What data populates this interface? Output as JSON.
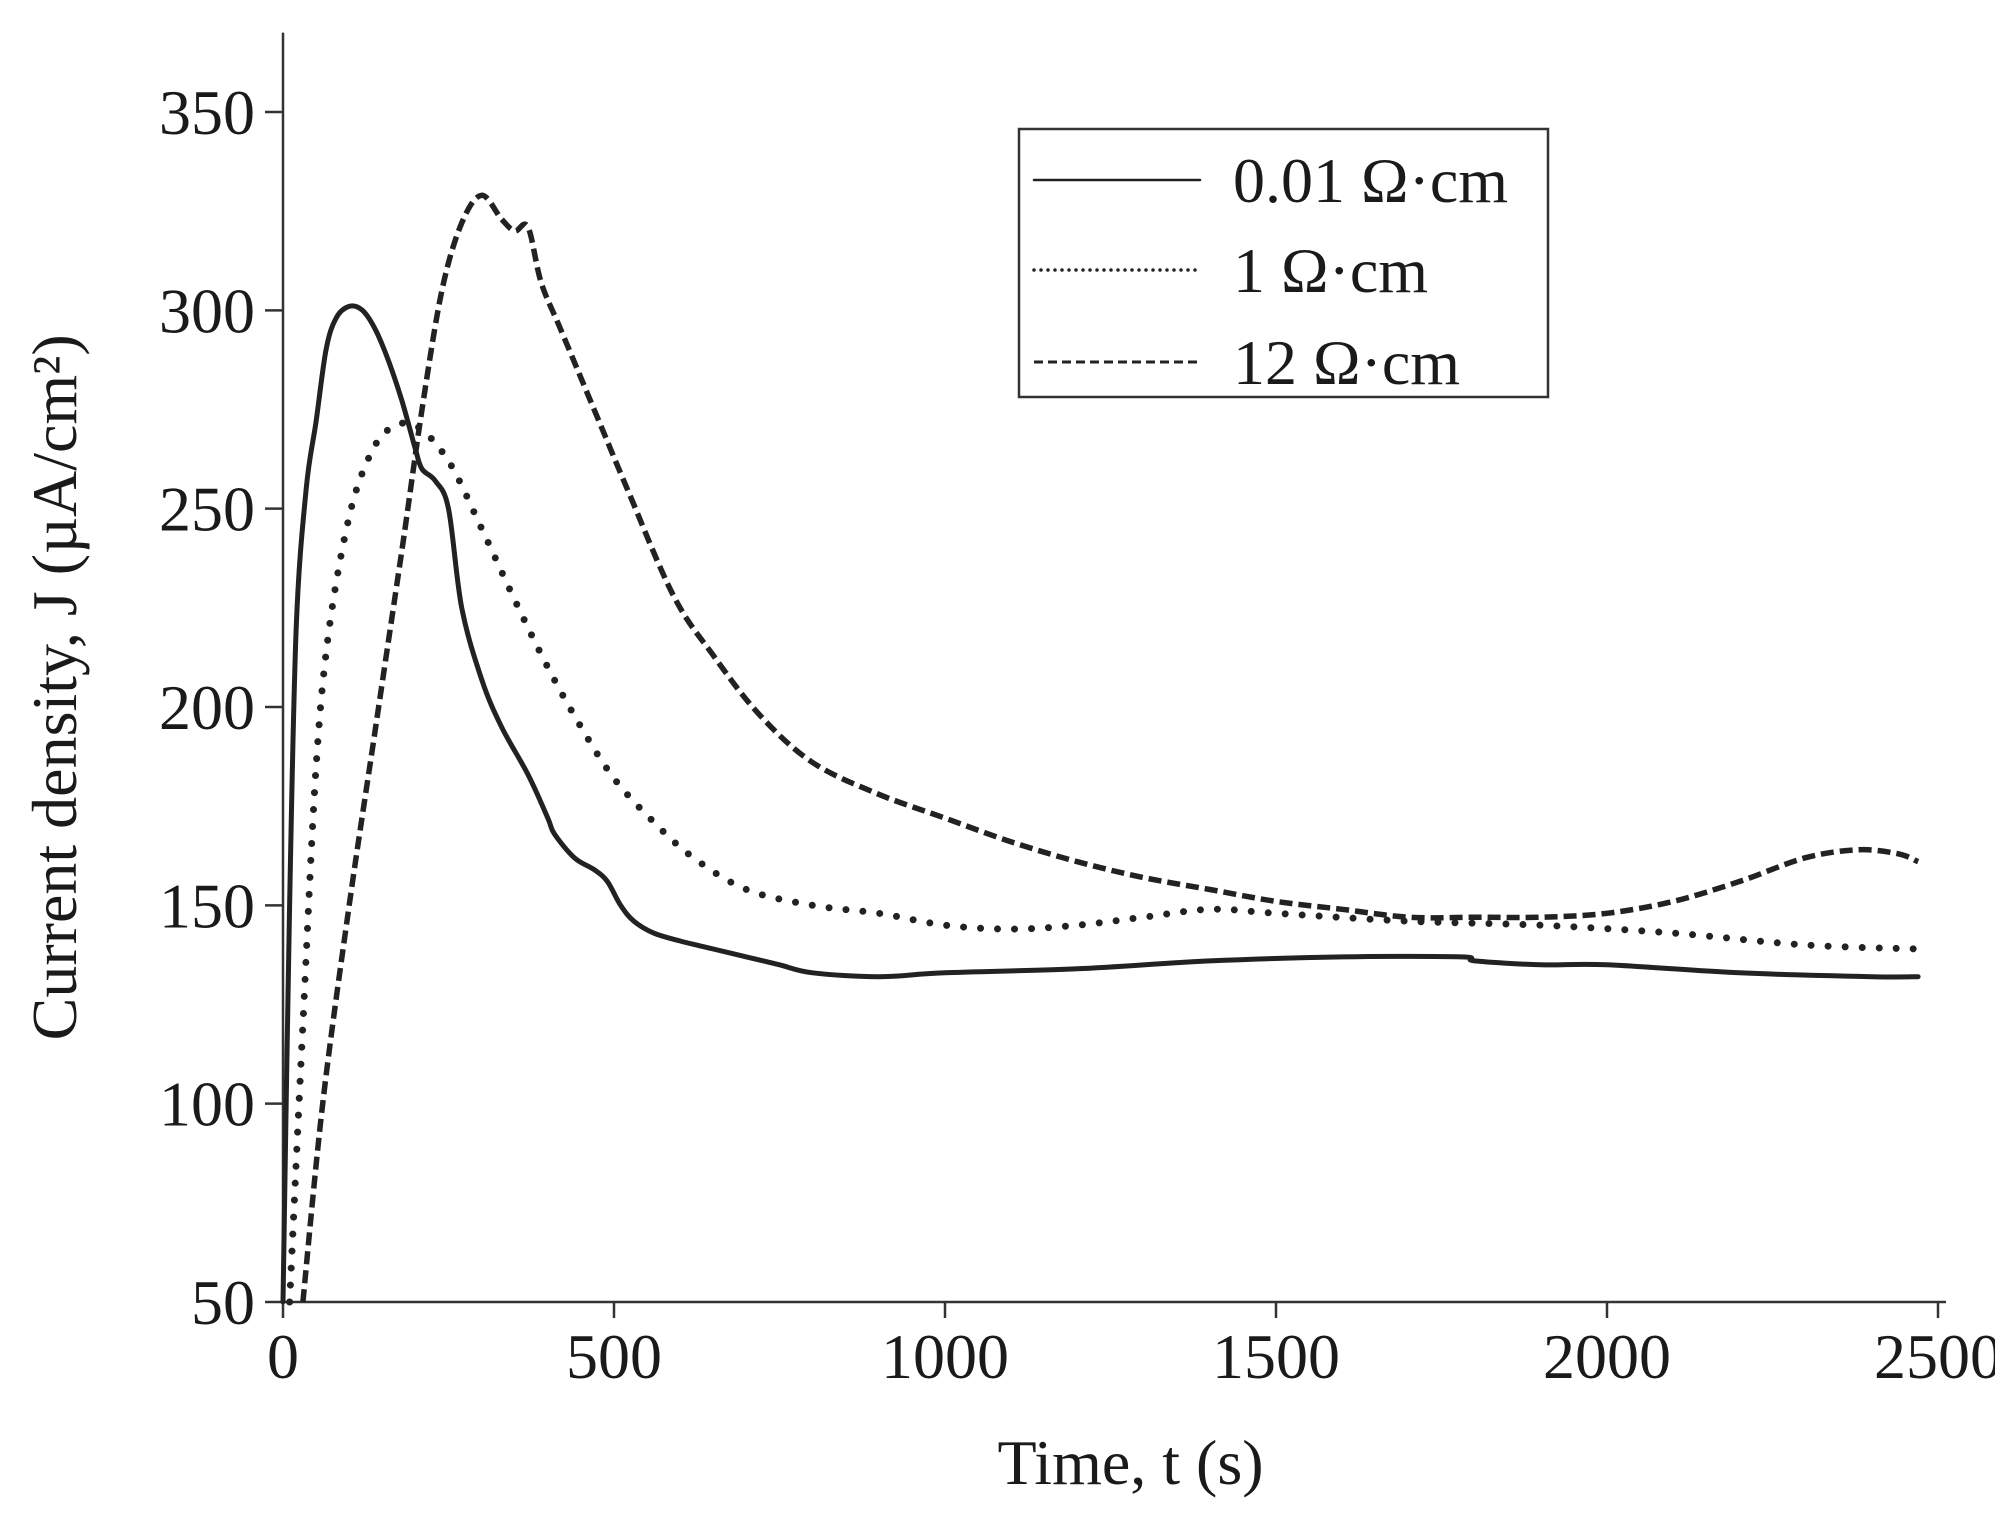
{
  "chart_data": {
    "type": "line",
    "title": "",
    "xlabel": "Time, t (s)",
    "ylabel": "Current density, J (µA/cm²)",
    "xlim": [
      0,
      2500
    ],
    "ylim": [
      50,
      370
    ],
    "x_ticks": [
      0,
      500,
      1000,
      1500,
      2000,
      2500
    ],
    "x_tick_labels": [
      "0",
      "500",
      "1000",
      "1500",
      "2000",
      "2500"
    ],
    "y_ticks": [
      50,
      100,
      150,
      200,
      250,
      300,
      350
    ],
    "y_tick_labels": [
      "50",
      "100",
      "150",
      "200",
      "250",
      "300",
      "350"
    ],
    "legend_position": "top-right",
    "grid": false,
    "series": [
      {
        "name": "0.01 Ω·cm",
        "style": "solid",
        "points": [
          [
            0,
            50
          ],
          [
            10,
            150
          ],
          [
            20,
            220
          ],
          [
            35,
            255
          ],
          [
            50,
            272
          ],
          [
            65,
            290
          ],
          [
            80,
            298
          ],
          [
            100,
            301
          ],
          [
            120,
            300
          ],
          [
            140,
            295
          ],
          [
            160,
            287
          ],
          [
            180,
            277
          ],
          [
            200,
            265
          ],
          [
            210,
            260
          ],
          [
            230,
            257
          ],
          [
            250,
            250
          ],
          [
            270,
            225
          ],
          [
            300,
            207
          ],
          [
            330,
            195
          ],
          [
            370,
            183
          ],
          [
            400,
            172
          ],
          [
            410,
            168
          ],
          [
            440,
            162
          ],
          [
            470,
            159
          ],
          [
            490,
            156
          ],
          [
            510,
            150
          ],
          [
            530,
            146
          ],
          [
            560,
            143
          ],
          [
            600,
            141
          ],
          [
            650,
            139
          ],
          [
            700,
            137
          ],
          [
            750,
            135
          ],
          [
            800,
            133
          ],
          [
            900,
            132
          ],
          [
            1000,
            133
          ],
          [
            1200,
            134
          ],
          [
            1400,
            136
          ],
          [
            1600,
            137
          ],
          [
            1780,
            137
          ],
          [
            1800,
            136
          ],
          [
            1900,
            135
          ],
          [
            2000,
            135
          ],
          [
            2200,
            133
          ],
          [
            2400,
            132
          ],
          [
            2470,
            132
          ]
        ]
      },
      {
        "name": "1 Ω·cm",
        "style": "dotted",
        "points": [
          [
            10,
            50
          ],
          [
            30,
            120
          ],
          [
            50,
            185
          ],
          [
            70,
            220
          ],
          [
            100,
            248
          ],
          [
            130,
            263
          ],
          [
            160,
            270
          ],
          [
            200,
            271
          ],
          [
            250,
            262
          ],
          [
            300,
            245
          ],
          [
            350,
            227
          ],
          [
            400,
            210
          ],
          [
            450,
            195
          ],
          [
            500,
            182
          ],
          [
            560,
            171
          ],
          [
            620,
            162
          ],
          [
            700,
            154
          ],
          [
            800,
            150
          ],
          [
            900,
            148
          ],
          [
            1000,
            145
          ],
          [
            1100,
            144
          ],
          [
            1200,
            145
          ],
          [
            1300,
            147
          ],
          [
            1400,
            149
          ],
          [
            1500,
            148
          ],
          [
            1700,
            146
          ],
          [
            1900,
            145
          ],
          [
            2100,
            143
          ],
          [
            2300,
            140
          ],
          [
            2470,
            139
          ]
        ]
      },
      {
        "name": "12 Ω·cm",
        "style": "dashed",
        "points": [
          [
            30,
            50
          ],
          [
            60,
            100
          ],
          [
            100,
            150
          ],
          [
            140,
            195
          ],
          [
            180,
            240
          ],
          [
            210,
            275
          ],
          [
            240,
            305
          ],
          [
            270,
            322
          ],
          [
            300,
            329
          ],
          [
            330,
            323
          ],
          [
            350,
            320
          ],
          [
            370,
            321
          ],
          [
            390,
            307
          ],
          [
            420,
            295
          ],
          [
            470,
            275
          ],
          [
            520,
            255
          ],
          [
            590,
            228
          ],
          [
            650,
            213
          ],
          [
            720,
            198
          ],
          [
            800,
            186
          ],
          [
            900,
            178
          ],
          [
            1000,
            172
          ],
          [
            1100,
            166
          ],
          [
            1200,
            161
          ],
          [
            1300,
            157
          ],
          [
            1400,
            154
          ],
          [
            1500,
            151
          ],
          [
            1600,
            149
          ],
          [
            1700,
            147
          ],
          [
            1800,
            147
          ],
          [
            1900,
            147
          ],
          [
            2000,
            148
          ],
          [
            2100,
            151
          ],
          [
            2200,
            156
          ],
          [
            2300,
            162
          ],
          [
            2380,
            164
          ],
          [
            2440,
            163
          ],
          [
            2470,
            161
          ]
        ]
      }
    ]
  }
}
